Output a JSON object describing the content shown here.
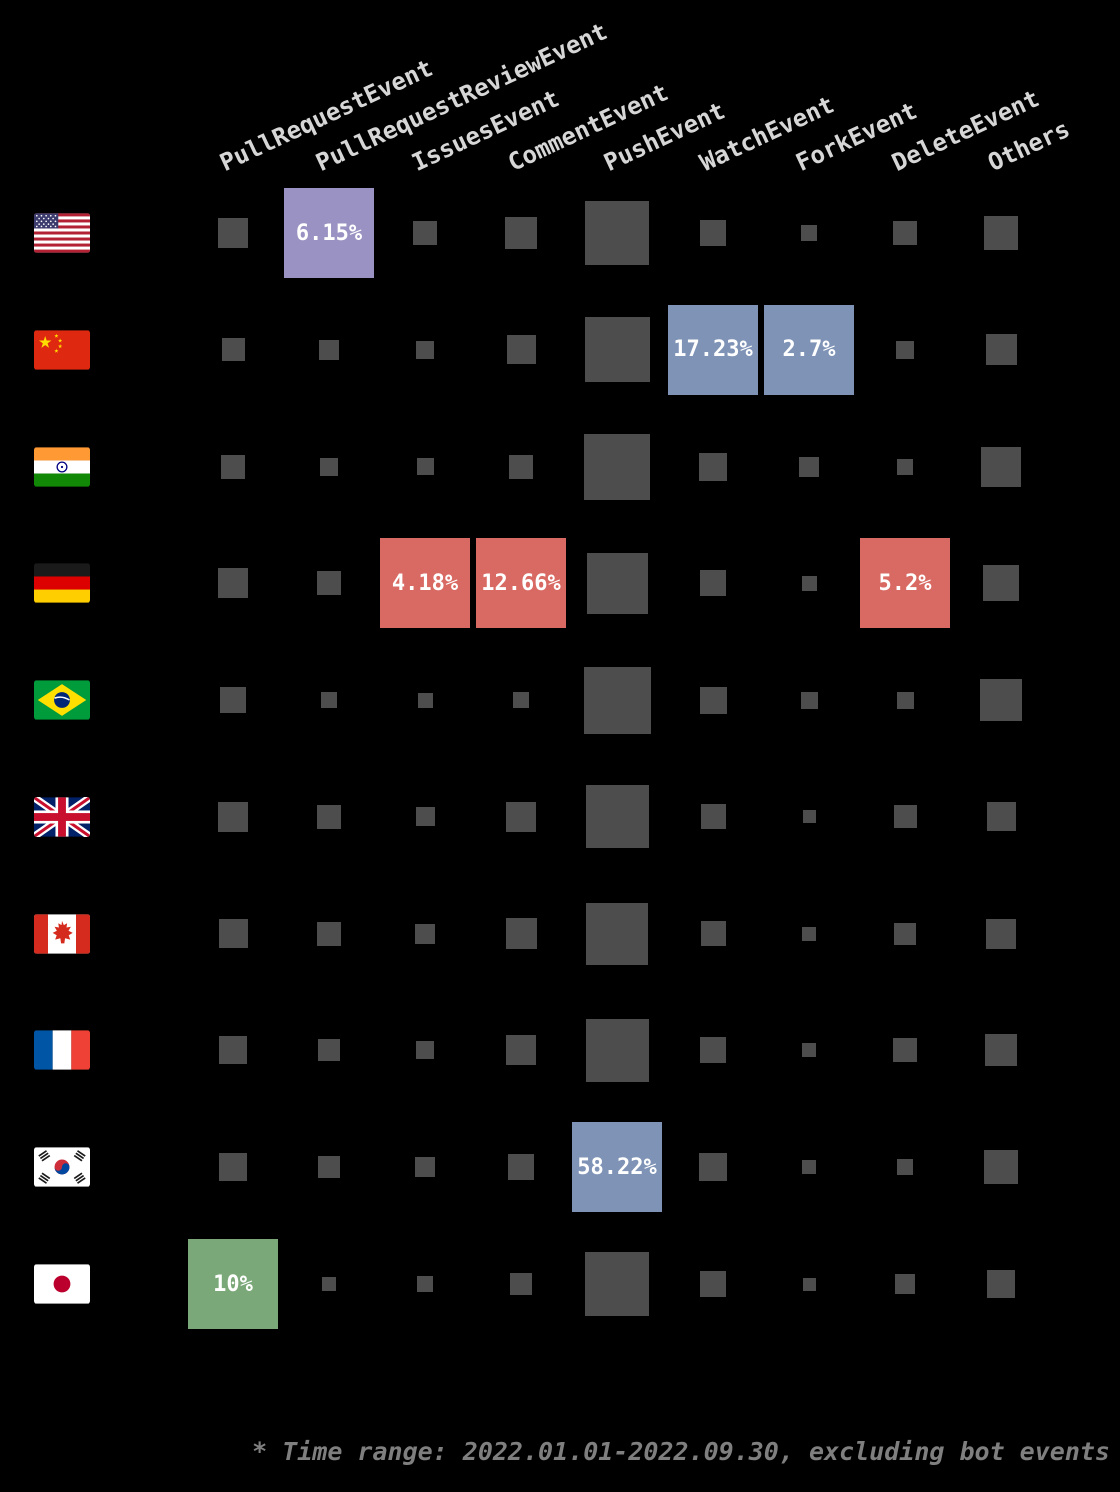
{
  "chart_data": {
    "type": "heatmap",
    "description": "GitHub event type distribution per country; square size encodes share, highlighted cells show percentage labels",
    "columns": [
      "PullRequestEvent",
      "PullRequestReviewEvent",
      "IssuesEvent",
      "CommentEvent",
      "PushEvent",
      "WatchEvent",
      "ForkEvent",
      "DeleteEvent",
      "Others"
    ],
    "rows": [
      {
        "country": "United States",
        "flag": "us",
        "flag_icon": "flag-us-icon",
        "cells": [
          {
            "size": 30
          },
          {
            "label": "6.15%",
            "color": "purple"
          },
          {
            "size": 24
          },
          {
            "size": 32
          },
          {
            "size": 64
          },
          {
            "size": 26
          },
          {
            "size": 16
          },
          {
            "size": 24
          },
          {
            "size": 34
          }
        ]
      },
      {
        "country": "China",
        "flag": "cn",
        "flag_icon": "flag-cn-icon",
        "cells": [
          {
            "size": 23
          },
          {
            "size": 20
          },
          {
            "size": 18
          },
          {
            "size": 29
          },
          {
            "size": 65
          },
          {
            "label": "17.23%",
            "color": "blue"
          },
          {
            "label": "2.7%",
            "color": "blue"
          },
          {
            "size": 18
          },
          {
            "size": 31
          }
        ]
      },
      {
        "country": "India",
        "flag": "in",
        "flag_icon": "flag-in-icon",
        "cells": [
          {
            "size": 24
          },
          {
            "size": 18
          },
          {
            "size": 17
          },
          {
            "size": 24
          },
          {
            "size": 66
          },
          {
            "size": 28
          },
          {
            "size": 20
          },
          {
            "size": 16
          },
          {
            "size": 40
          }
        ]
      },
      {
        "country": "Germany",
        "flag": "de",
        "flag_icon": "flag-de-icon",
        "cells": [
          {
            "size": 30
          },
          {
            "size": 24
          },
          {
            "label": "4.18%",
            "color": "red"
          },
          {
            "label": "12.66%",
            "color": "red"
          },
          {
            "size": 61
          },
          {
            "size": 26
          },
          {
            "size": 15
          },
          {
            "label": "5.2%",
            "color": "red"
          },
          {
            "size": 36
          }
        ]
      },
      {
        "country": "Brazil",
        "flag": "br",
        "flag_icon": "flag-br-icon",
        "cells": [
          {
            "size": 26
          },
          {
            "size": 16
          },
          {
            "size": 15
          },
          {
            "size": 16
          },
          {
            "size": 67
          },
          {
            "size": 27
          },
          {
            "size": 17
          },
          {
            "size": 17
          },
          {
            "size": 42
          }
        ]
      },
      {
        "country": "United Kingdom",
        "flag": "gb",
        "flag_icon": "flag-gb-icon",
        "cells": [
          {
            "size": 30
          },
          {
            "size": 24
          },
          {
            "size": 19
          },
          {
            "size": 30
          },
          {
            "size": 63
          },
          {
            "size": 25
          },
          {
            "size": 13
          },
          {
            "size": 23
          },
          {
            "size": 29
          }
        ]
      },
      {
        "country": "Canada",
        "flag": "ca",
        "flag_icon": "flag-ca-icon",
        "cells": [
          {
            "size": 29
          },
          {
            "size": 24
          },
          {
            "size": 20
          },
          {
            "size": 31
          },
          {
            "size": 62
          },
          {
            "size": 25
          },
          {
            "size": 14
          },
          {
            "size": 22
          },
          {
            "size": 30
          }
        ]
      },
      {
        "country": "France",
        "flag": "fr",
        "flag_icon": "flag-fr-icon",
        "cells": [
          {
            "size": 28
          },
          {
            "size": 22
          },
          {
            "size": 18
          },
          {
            "size": 30
          },
          {
            "size": 63
          },
          {
            "size": 26
          },
          {
            "size": 14
          },
          {
            "size": 24
          },
          {
            "size": 32
          }
        ]
      },
      {
        "country": "South Korea",
        "flag": "kr",
        "flag_icon": "flag-kr-icon",
        "cells": [
          {
            "size": 28
          },
          {
            "size": 22
          },
          {
            "size": 20
          },
          {
            "size": 26
          },
          {
            "label": "58.22%",
            "color": "blue"
          },
          {
            "size": 28
          },
          {
            "size": 14
          },
          {
            "size": 16
          },
          {
            "size": 34
          }
        ]
      },
      {
        "country": "Japan",
        "flag": "jp",
        "flag_icon": "flag-jp-icon",
        "cells": [
          {
            "label": "10%",
            "color": "green"
          },
          {
            "size": 14
          },
          {
            "size": 16
          },
          {
            "size": 22
          },
          {
            "size": 64
          },
          {
            "size": 26
          },
          {
            "size": 13
          },
          {
            "size": 20
          },
          {
            "size": 28
          }
        ]
      }
    ],
    "note": "* Time range: 2022.01.01-2022.09.30, excluding bot events"
  },
  "colors": {
    "purple": "#9a92c2",
    "blue": "#7e93b6",
    "red": "#d96a63",
    "green": "#7aa878",
    "square": "#4d4d4d",
    "header_text": "#d6d6d6",
    "note_text": "#7f7f7f",
    "value_text": "#ffffff",
    "background": "#000000"
  }
}
